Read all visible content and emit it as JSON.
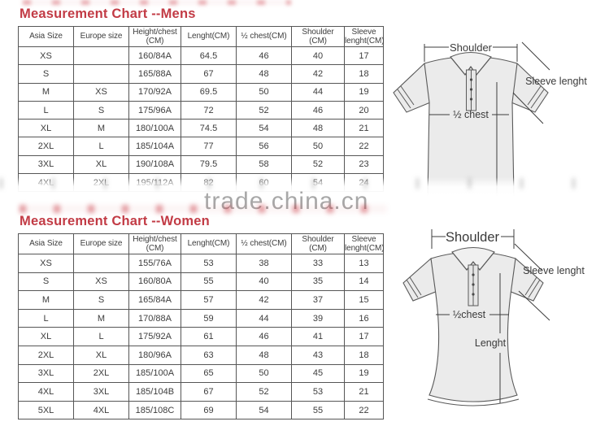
{
  "watermark": {
    "text": "trade.china.cn",
    "color": "#a8a8a8"
  },
  "accent_color": "#c23b45",
  "sections": [
    {
      "id": "mens",
      "title": "Measurement Chart --Mens",
      "table": {
        "headers": [
          "Asia Size",
          "Europe size",
          "Height/chest\n(CM)",
          "Lenght(CM)",
          "½ chest(CM)",
          "Shoulder\n(CM)",
          "Sleeve\nlenght(CM)"
        ],
        "rows": [
          [
            "XS",
            "",
            "160/84A",
            "64.5",
            "46",
            "40",
            "17"
          ],
          [
            "S",
            "",
            "165/88A",
            "67",
            "48",
            "42",
            "18"
          ],
          [
            "M",
            "XS",
            "170/92A",
            "69.5",
            "50",
            "44",
            "19"
          ],
          [
            "L",
            "S",
            "175/96A",
            "72",
            "52",
            "46",
            "20"
          ],
          [
            "XL",
            "M",
            "180/100A",
            "74.5",
            "54",
            "48",
            "21"
          ],
          [
            "2XL",
            "L",
            "185/104A",
            "77",
            "56",
            "50",
            "22"
          ],
          [
            "3XL",
            "XL",
            "190/108A",
            "79.5",
            "58",
            "52",
            "23"
          ],
          [
            "4XL",
            "2XL",
            "195/112A",
            "82",
            "60",
            "54",
            "24"
          ]
        ]
      },
      "diagram": {
        "labels": {
          "shoulder": "Shoulder",
          "sleeve": "Sleeve lenght",
          "chest": "½ chest"
        }
      }
    },
    {
      "id": "women",
      "title": "Measurement Chart --Women",
      "table": {
        "headers": [
          "Asia Size",
          "Europe size",
          "Height/chest\n(CM)",
          "Lenght(CM)",
          "½ chest(CM)",
          "Shoulder\n(CM)",
          "Sleeve\nlenght(CM)"
        ],
        "rows": [
          [
            "XS",
            "",
            "155/76A",
            "53",
            "38",
            "33",
            "13"
          ],
          [
            "S",
            "XS",
            "160/80A",
            "55",
            "40",
            "35",
            "14"
          ],
          [
            "M",
            "S",
            "165/84A",
            "57",
            "42",
            "37",
            "15"
          ],
          [
            "L",
            "M",
            "170/88A",
            "59",
            "44",
            "39",
            "16"
          ],
          [
            "XL",
            "L",
            "175/92A",
            "61",
            "46",
            "41",
            "17"
          ],
          [
            "2XL",
            "XL",
            "180/96A",
            "63",
            "48",
            "43",
            "18"
          ],
          [
            "3XL",
            "2XL",
            "185/100A",
            "65",
            "50",
            "45",
            "19"
          ],
          [
            "4XL",
            "3XL",
            "185/104B",
            "67",
            "52",
            "53",
            "21"
          ],
          [
            "5XL",
            "4XL",
            "185/108C",
            "69",
            "54",
            "55",
            "22"
          ]
        ]
      },
      "diagram": {
        "labels": {
          "shoulder": "Shoulder",
          "sleeve": "Sleeve lenght",
          "chest": "½chest",
          "length": "Lenght"
        }
      }
    }
  ]
}
